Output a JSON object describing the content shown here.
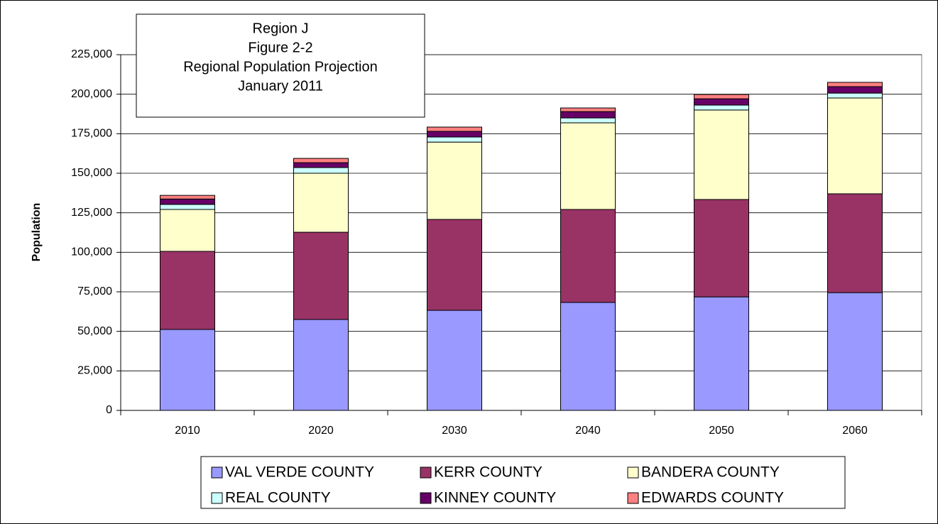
{
  "chart_data": {
    "type": "stacked_bar",
    "title": [
      "Region J",
      "Figure 2-2",
      "Regional Population Projection",
      "January 2011"
    ],
    "y_label": "Population",
    "categories": [
      "2010",
      "2020",
      "2030",
      "2040",
      "2050",
      "2060"
    ],
    "series": [
      {
        "name": "VAL VERDE COUNTY",
        "color": "#9999ff",
        "values": [
          51200,
          57500,
          63300,
          68300,
          71800,
          74500
        ]
      },
      {
        "name": "KERR COUNTY",
        "color": "#993366",
        "values": [
          49400,
          55200,
          57500,
          58800,
          61600,
          62500
        ]
      },
      {
        "name": "BANDERA COUNTY",
        "color": "#ffffcc",
        "values": [
          26500,
          37300,
          48900,
          54800,
          56600,
          60600
        ]
      },
      {
        "name": "REAL COUNTY",
        "color": "#ccffff",
        "values": [
          3200,
          3600,
          3200,
          3100,
          3100,
          3100
        ]
      },
      {
        "name": "KINNEY COUNTY",
        "color": "#660066",
        "values": [
          3400,
          3100,
          3600,
          4000,
          4000,
          4100
        ]
      },
      {
        "name": "EDWARDS COUNTY",
        "color": "#ff8080",
        "values": [
          2300,
          2700,
          2700,
          2300,
          2700,
          2700
        ]
      }
    ],
    "ylim": [
      0,
      225000
    ],
    "yticks": [
      0,
      {
        "value": 25000,
        "label": "25,000"
      },
      {
        "value": 50000,
        "label": "50,000"
      },
      {
        "value": 75000,
        "label": "75,000"
      },
      {
        "value": 100000,
        "label": "100,000"
      },
      {
        "value": 125000,
        "label": "125,000"
      },
      {
        "value": 150000,
        "label": "150,000"
      },
      {
        "value": 175000,
        "label": "175,000"
      },
      {
        "value": 200000,
        "label": "200,000"
      },
      {
        "value": 225000,
        "label": "225,000"
      }
    ],
    "grid": true,
    "legend": "bottom"
  }
}
